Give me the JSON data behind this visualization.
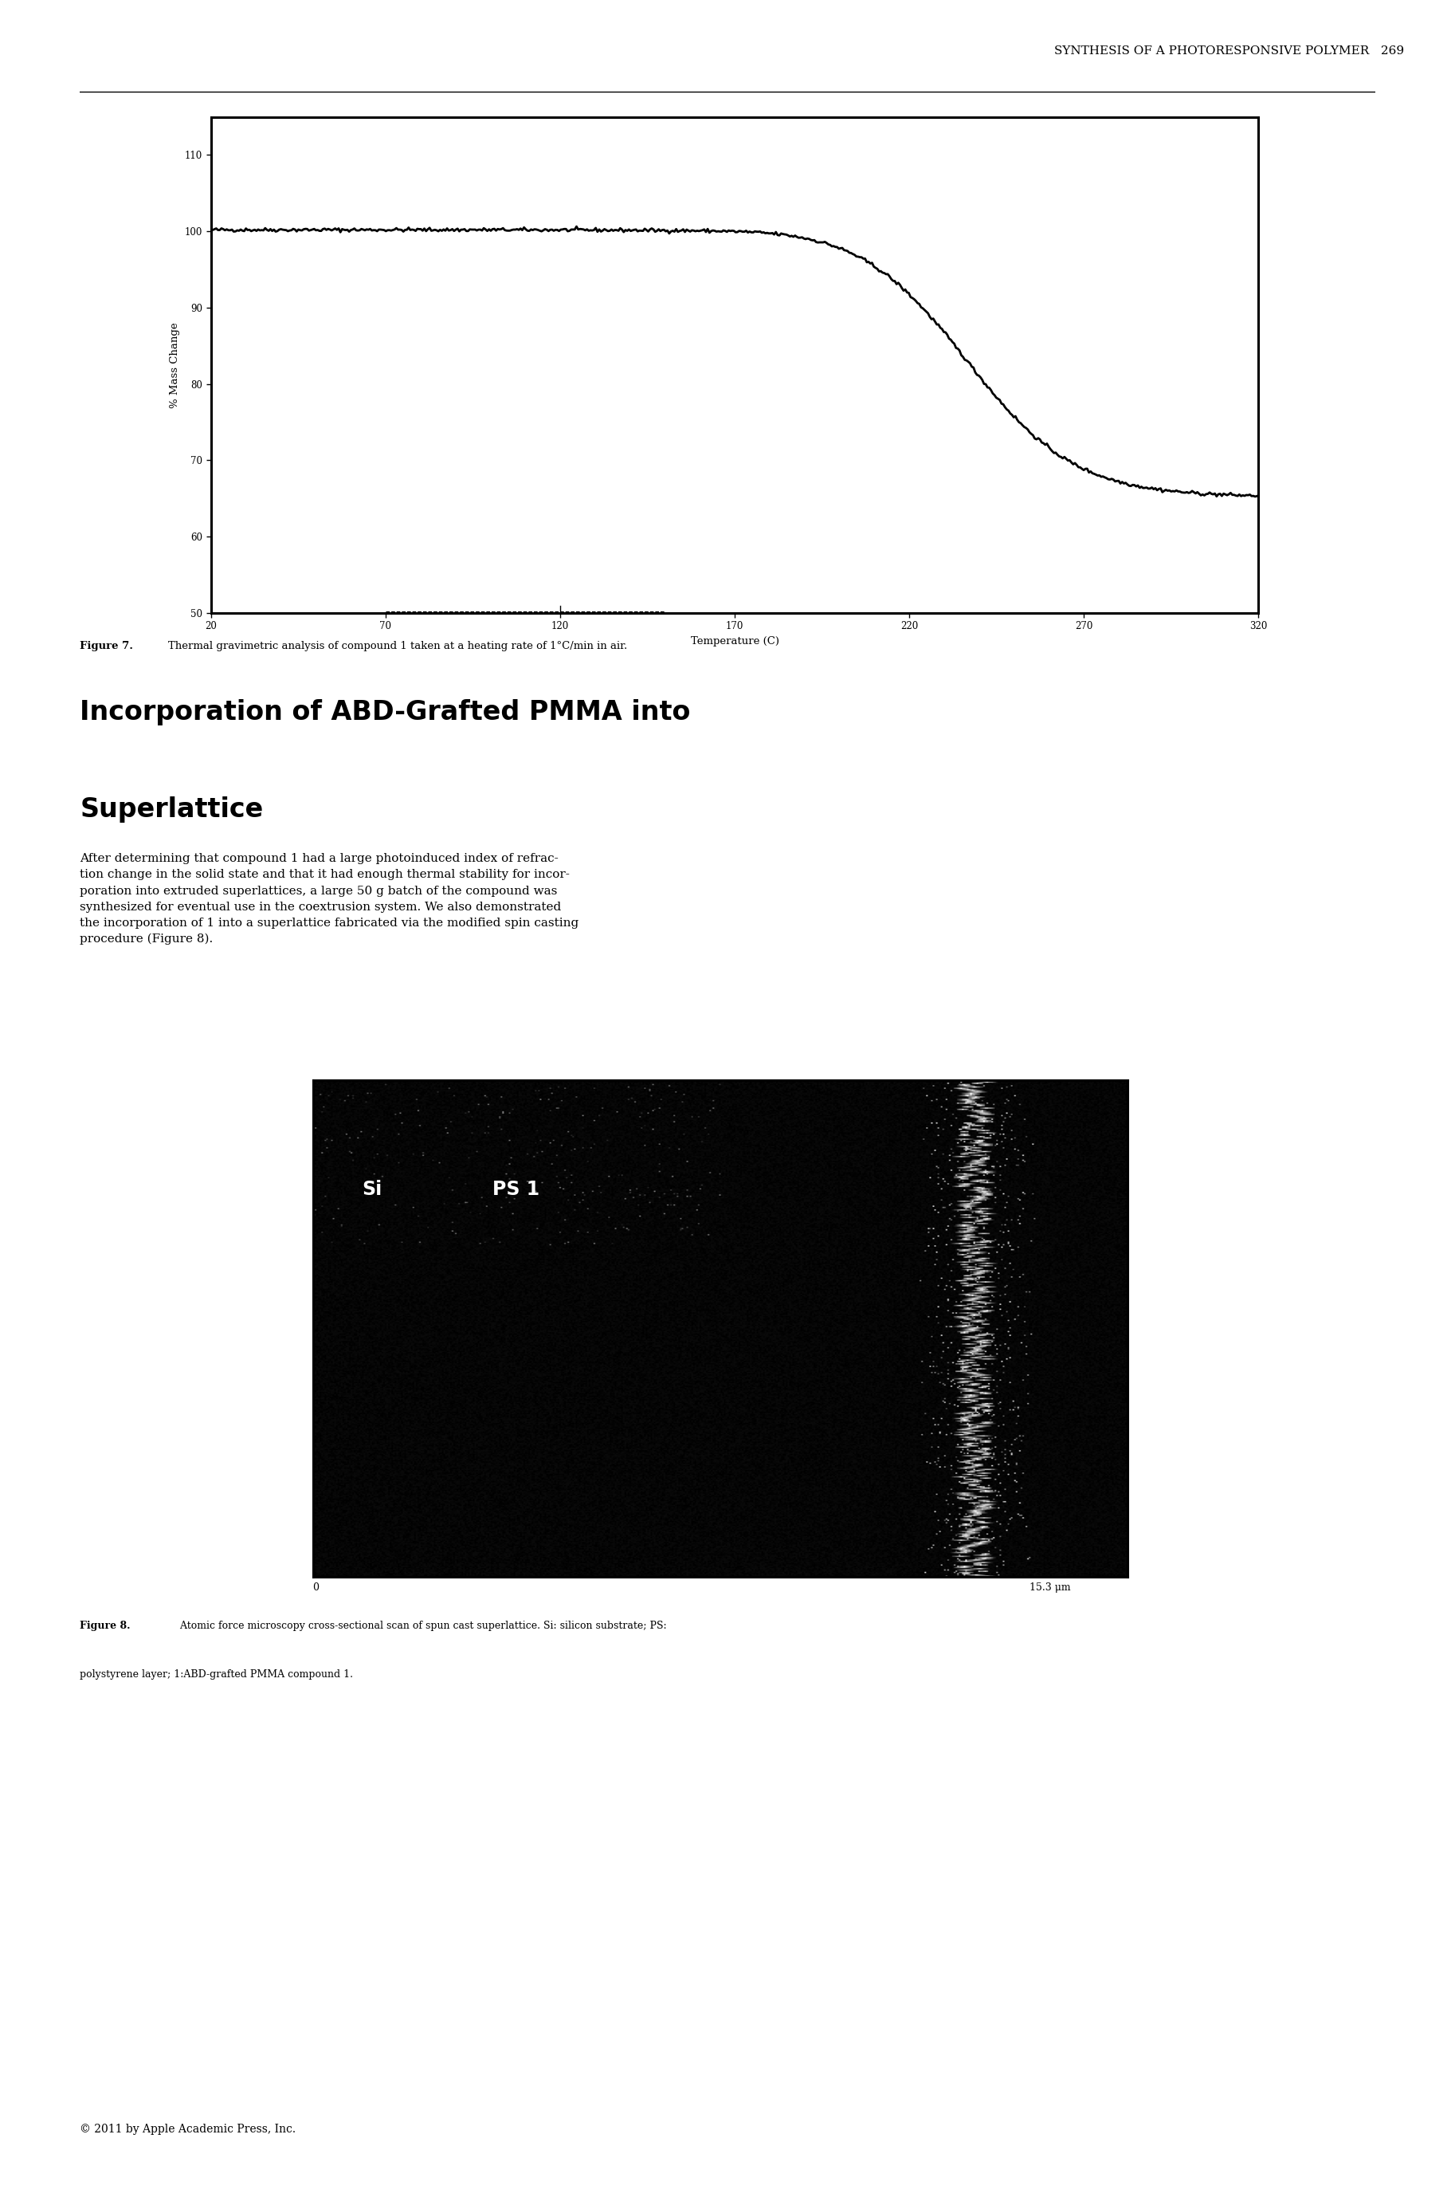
{
  "page_header": "SYNTHESIS OF A PHOTORESPONSIVE POLYMER   269",
  "figure7_caption": "Figure 7. Thermal gravimetric analysis of compound 1 taken at a heating rate of 1°C/min in air.",
  "section_title_line1": "Incorporation of ABD-Grafted PMMA into",
  "section_title_line2": "Superlattice",
  "body_text": "After determining that compound 1 had a large photoinduced index of refraction change in the solid state and that it had enough thermal stability for incorporation into extruded superlattices, a large 50 g batch of the compound was synthesized for eventual use in the coextrusion system. We also demonstrated the incorporation of 1 into a superlattice fabricated via the modified spin casting procedure (Figure 8).",
  "figure8_caption_bold": "Figure 8.",
  "figure8_caption_rest": " Atomic force microscopy cross-sectional scan of spun cast superlattice. Si: silicon substrate; PS: polystyrene layer; 1:ABD-grafted PMMA compound 1.",
  "footer": "© 2011 by Apple Academic Press, Inc.",
  "tga_ylabel": "% Mass Change",
  "tga_xlabel": "Temperature (C)",
  "tga_yticks": [
    50,
    60,
    70,
    80,
    90,
    100,
    110
  ],
  "tga_xticks": [
    20,
    70,
    120,
    170,
    220,
    270,
    320
  ],
  "bg_color": "#ffffff",
  "text_color": "#000000",
  "afm_scale_label": "15.3 μm"
}
